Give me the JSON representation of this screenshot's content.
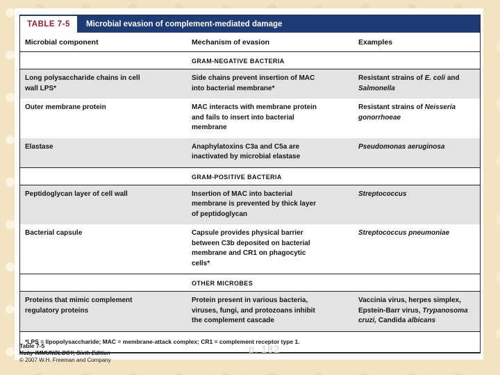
{
  "header": {
    "tag": "TABLE 7-5",
    "title": "Microbial evasion of complement-mediated damage"
  },
  "columns": {
    "c1": "Microbial component",
    "c2": "Mechanism of evasion",
    "c3": "Examples"
  },
  "sections": [
    {
      "heading": "GRAM-NEGATIVE BACTERIA",
      "rows": [
        {
          "component": "Long polysaccharide chains in cell wall LPS*",
          "mechanism": "Side chains prevent insertion of MAC into bacterial membrane*",
          "examples": "Resistant strains of _E. coli_ and _Salmonella_"
        },
        {
          "component": "Outer membrane protein",
          "mechanism": "MAC interacts with membrane protein and fails to insert into bacterial membrane",
          "examples": "Resistant strains of _Neisseria gonorrhoeae_"
        },
        {
          "component": "Elastase",
          "mechanism": "Anaphylatoxins C3a and C5a are inactivated by microbial elastase",
          "examples": "_Pseudomonas aeruginosa_"
        }
      ]
    },
    {
      "heading": "GRAM-POSITIVE BACTERIA",
      "rows": [
        {
          "component": "Peptidoglycan layer of cell wall",
          "mechanism": "Insertion of MAC into bacterial membrane is prevented by thick layer of peptidoglycan",
          "examples": "_Streptococcus_"
        },
        {
          "component": "Bacterial capsule",
          "mechanism": "Capsule provides physical barrier between C3b deposited on bacterial membrane and CR1 on phagocytic cells*",
          "examples": "_Streptococcus pneumoniae_"
        }
      ]
    },
    {
      "heading": "OTHER MICROBES",
      "rows": [
        {
          "component": "Proteins that mimic complement regulatory proteins",
          "mechanism": "Protein present in various bacteria, viruses, fungi, and protozoans inhibit the complement cascade",
          "examples": "Vaccinia virus, herpes simplex, Epstein-Barr virus, _Trypanosoma cruzi,_ Candida _albicans_"
        }
      ]
    }
  ],
  "footnote": "*LPS = lipopolysaccharide; MAC = membrane-attack complex; CR1 = complement receptor type 1.",
  "credit": {
    "line1": "Table 7-5",
    "line2": "Kuby IMMUNOLOGY, Sixth Edition",
    "line3": "© 2007 W.H. Freeman and Company"
  },
  "watermark": "p. 182",
  "colors": {
    "header_blue": "#1f3b76",
    "tag_red": "#9e1b31",
    "row_gray": "#e3e3e3",
    "page_beige": "#f2e3c1"
  }
}
